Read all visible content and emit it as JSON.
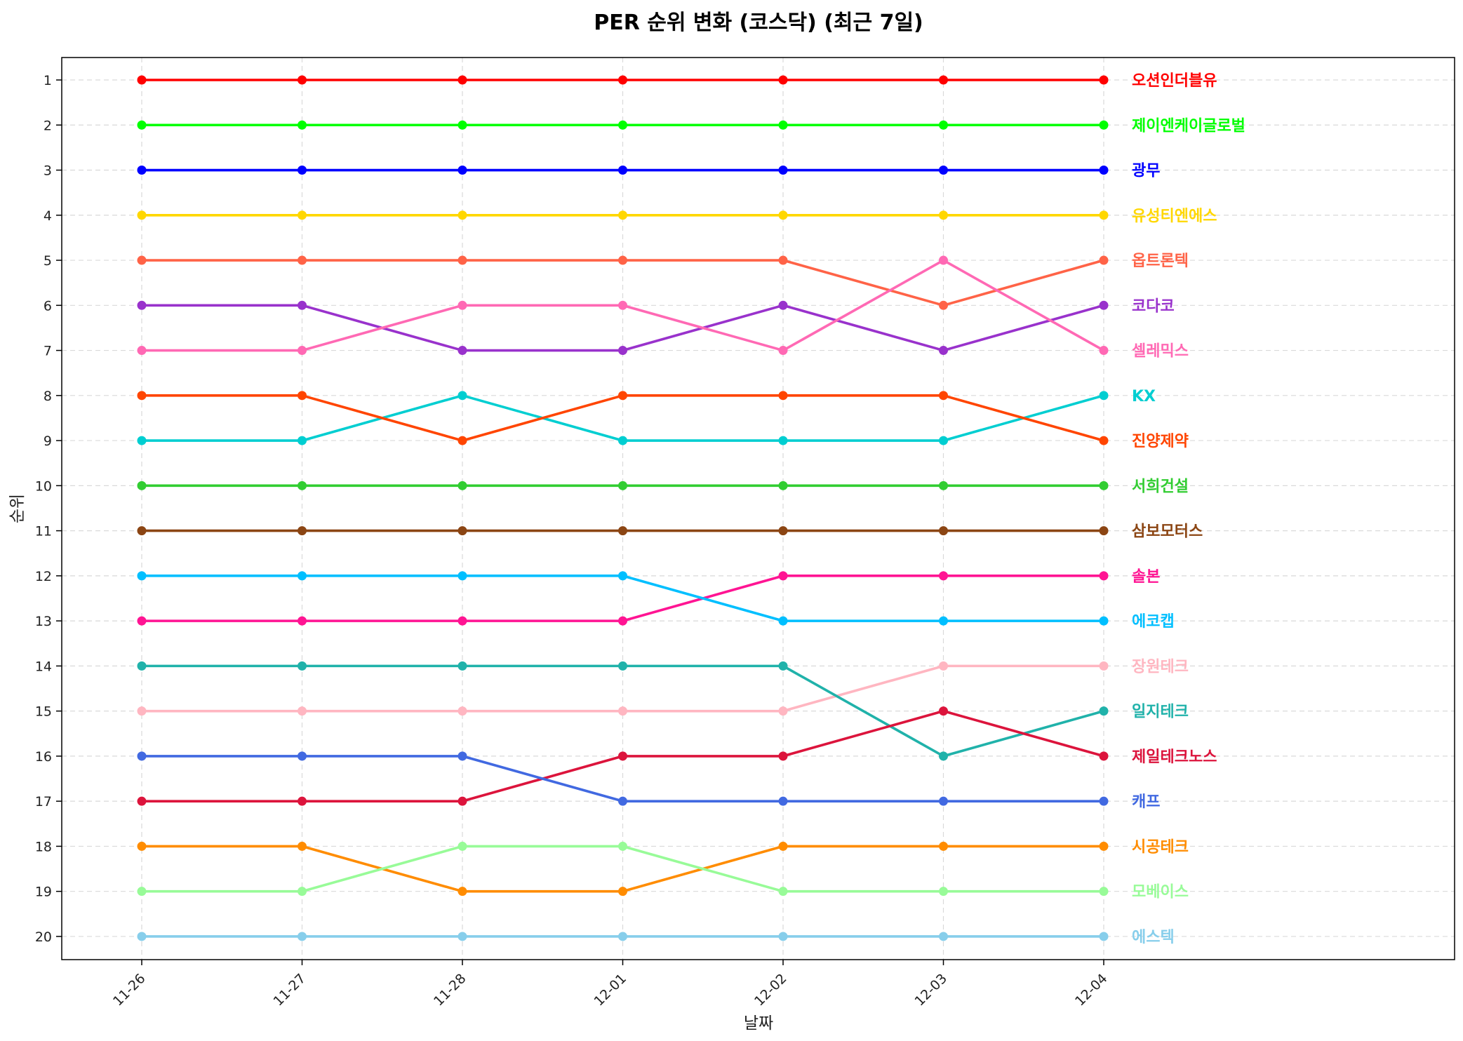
{
  "chart_data": {
    "type": "line",
    "title": "PER 순위 변화 (코스닥) (최근 7일)",
    "xlabel": "날짜",
    "ylabel": "순위",
    "x": [
      "11-26",
      "11-27",
      "11-28",
      "12-01",
      "12-02",
      "12-03",
      "12-04"
    ],
    "y_ticks": [
      1,
      2,
      3,
      4,
      5,
      6,
      7,
      8,
      9,
      10,
      11,
      12,
      13,
      14,
      15,
      16,
      17,
      18,
      19,
      20
    ],
    "ylim": [
      20.5,
      0.5
    ],
    "y_inverted": true,
    "grid": true,
    "legend": "labels at right end of each line",
    "series": [
      {
        "name": "오션인더블유",
        "color": "#ff0000",
        "values": [
          1,
          1,
          1,
          1,
          1,
          1,
          1
        ]
      },
      {
        "name": "제이엔케이글로벌",
        "color": "#00ff00",
        "values": [
          2,
          2,
          2,
          2,
          2,
          2,
          2
        ]
      },
      {
        "name": "광무",
        "color": "#0000ff",
        "values": [
          3,
          3,
          3,
          3,
          3,
          3,
          3
        ]
      },
      {
        "name": "유성티엔에스",
        "color": "#ffd700",
        "values": [
          4,
          4,
          4,
          4,
          4,
          4,
          4
        ]
      },
      {
        "name": "옵트론텍",
        "color": "#ff6347",
        "values": [
          5,
          5,
          5,
          5,
          5,
          6,
          5
        ]
      },
      {
        "name": "코다코",
        "color": "#9932cc",
        "values": [
          6,
          6,
          7,
          7,
          6,
          7,
          6
        ]
      },
      {
        "name": "셀레믹스",
        "color": "#ff69b4",
        "values": [
          7,
          7,
          6,
          6,
          7,
          5,
          7
        ]
      },
      {
        "name": "KX",
        "color": "#00ced1",
        "values": [
          9,
          9,
          8,
          9,
          9,
          9,
          8
        ]
      },
      {
        "name": "진양제약",
        "color": "#ff4500",
        "values": [
          8,
          8,
          9,
          8,
          8,
          8,
          9
        ]
      },
      {
        "name": "서희건설",
        "color": "#32cd32",
        "values": [
          10,
          10,
          10,
          10,
          10,
          10,
          10
        ]
      },
      {
        "name": "삼보모터스",
        "color": "#8b4513",
        "values": [
          11,
          11,
          11,
          11,
          11,
          11,
          11
        ]
      },
      {
        "name": "솔본",
        "color": "#ff1493",
        "values": [
          13,
          13,
          13,
          13,
          12,
          12,
          12
        ]
      },
      {
        "name": "에코캡",
        "color": "#00bfff",
        "values": [
          12,
          12,
          12,
          12,
          13,
          13,
          13
        ]
      },
      {
        "name": "장원테크",
        "color": "#ffb6c1",
        "values": [
          15,
          15,
          15,
          15,
          15,
          14,
          14
        ]
      },
      {
        "name": "일지테크",
        "color": "#20b2aa",
        "values": [
          14,
          14,
          14,
          14,
          14,
          16,
          15
        ]
      },
      {
        "name": "제일테크노스",
        "color": "#dc143c",
        "values": [
          17,
          17,
          17,
          16,
          16,
          15,
          16
        ]
      },
      {
        "name": "캐프",
        "color": "#4169e1",
        "values": [
          16,
          16,
          16,
          17,
          17,
          17,
          17
        ]
      },
      {
        "name": "시공테크",
        "color": "#ff8c00",
        "values": [
          18,
          18,
          19,
          19,
          18,
          18,
          18
        ]
      },
      {
        "name": "모베이스",
        "color": "#98fb98",
        "values": [
          19,
          19,
          18,
          18,
          19,
          19,
          19
        ]
      },
      {
        "name": "에스텍",
        "color": "#87ceeb",
        "values": [
          20,
          20,
          20,
          20,
          20,
          20,
          20
        ]
      }
    ]
  }
}
